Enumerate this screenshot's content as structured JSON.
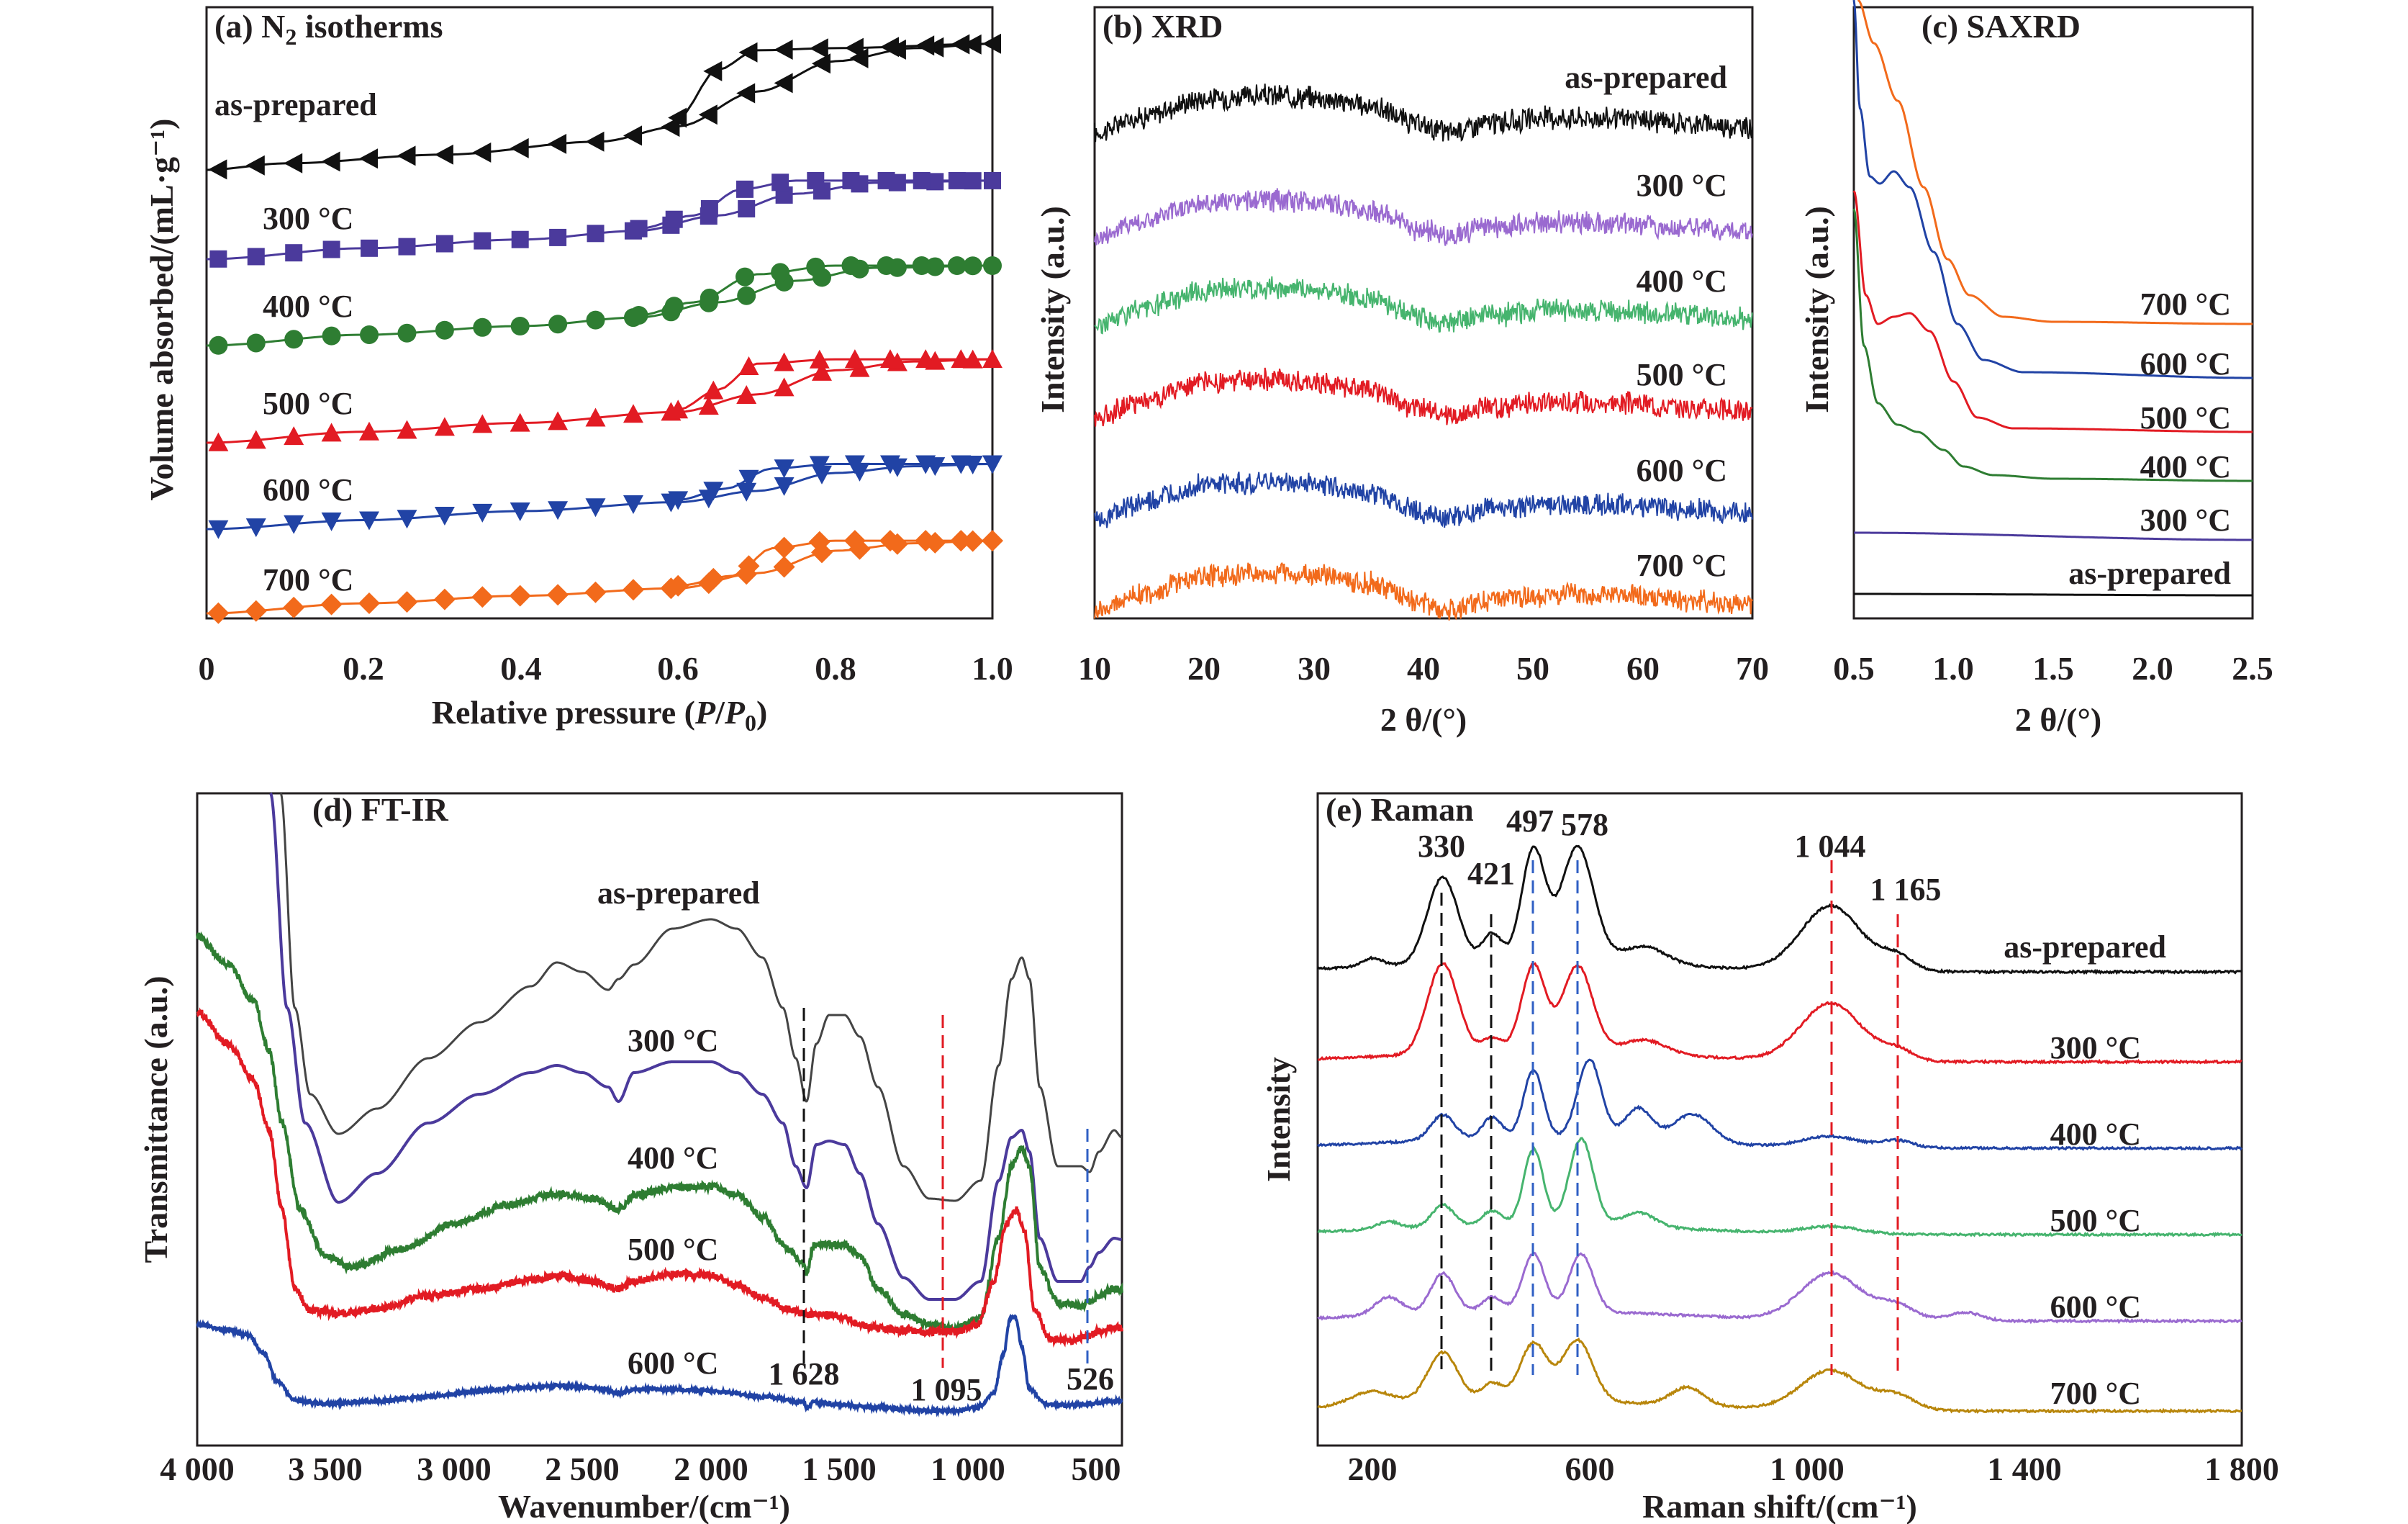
{
  "colors": {
    "black": "#111111",
    "purple": "#4b3a9c",
    "violet": "#9a6ad0",
    "green": "#2e7d32",
    "lgreen": "#46b46e",
    "red": "#e21b23",
    "blue": "#2143a5",
    "orange": "#f26a1b",
    "gold": "#b8860b",
    "gray": "#444444",
    "dashBlack": "#111111",
    "dashRed": "#e21b23",
    "dashBlue": "#2f5fc4"
  },
  "panels": {
    "a": {
      "title_prefix": "(a) N",
      "title_sub": "2",
      "title_suffix": " isotherms",
      "ylabel": "Volume absorbed/(mL·g⁻¹)",
      "xlabel_prefix": "Relative pressure (",
      "xlabel_p": "P",
      "xlabel_slash": "/",
      "xlabel_p0": "P",
      "xlabel_p0sub": "0",
      "xlabel_suffix": ")",
      "xticks": [
        "0",
        "0.2",
        "0.4",
        "0.6",
        "0.8",
        "1.0"
      ]
    },
    "b": {
      "title": "(b) XRD",
      "ylabel": "Intensity (a.u.)",
      "xlabel": "2 θ/(°)",
      "xticks": [
        "10",
        "20",
        "30",
        "40",
        "50",
        "60",
        "70"
      ]
    },
    "c": {
      "title": "(c) SAXRD",
      "ylabel": "Intensity (a.u.)",
      "xlabel": "2 θ/(°)",
      "xticks": [
        "0.5",
        "1.0",
        "1.5",
        "2.0",
        "2.5"
      ]
    },
    "d": {
      "title": "(d) FT-IR",
      "ylabel": "Transmittance (a.u.)",
      "xlabel": "Wavenumber/(cm⁻¹)",
      "xticks": [
        "4 000",
        "3 500",
        "3 000",
        "2 500",
        "2 000",
        "1 500",
        "1 000",
        "500"
      ],
      "annotations": [
        "1 628",
        "1 095",
        "526"
      ]
    },
    "e": {
      "title": "(e) Raman",
      "ylabel": "Intensity",
      "xlabel": "Raman shift/(cm⁻¹)",
      "xticks": [
        "200",
        "600",
        "1 000",
        "1 400",
        "1 800"
      ],
      "annotations": [
        "330",
        "421",
        "497",
        "578",
        "1 044",
        "1 165"
      ]
    }
  },
  "chart_data": [
    {
      "panel": "a",
      "type": "line",
      "title": "(a) N2 isotherms",
      "xlabel": "Relative pressure (P/P0)",
      "ylabel": "Volume absorbed/(mL·g⁻¹)",
      "xlim": [
        0,
        1.0
      ],
      "series": [
        {
          "name": "as-prepared",
          "marker": "triangle-left",
          "adsorption": [
            [
              0.0,
              0.0
            ],
            [
              0.1,
              0.03
            ],
            [
              0.3,
              0.07
            ],
            [
              0.5,
              0.13
            ],
            [
              0.6,
              0.2
            ],
            [
              0.7,
              0.36
            ],
            [
              0.8,
              0.5
            ],
            [
              0.9,
              0.56
            ],
            [
              1.0,
              0.58
            ]
          ],
          "desorption": [
            [
              1.0,
              0.58
            ],
            [
              0.8,
              0.56
            ],
            [
              0.7,
              0.55
            ],
            [
              0.65,
              0.46
            ],
            [
              0.6,
              0.24
            ]
          ]
        },
        {
          "name": "300 °C",
          "marker": "square",
          "adsorption": [
            [
              0.0,
              0.0
            ],
            [
              0.2,
              0.05
            ],
            [
              0.4,
              0.09
            ],
            [
              0.55,
              0.13
            ],
            [
              0.65,
              0.2
            ],
            [
              0.75,
              0.3
            ],
            [
              0.85,
              0.35
            ],
            [
              1.0,
              0.36
            ]
          ],
          "desorption": [
            [
              1.0,
              0.36
            ],
            [
              0.75,
              0.36
            ],
            [
              0.68,
              0.32
            ],
            [
              0.62,
              0.2
            ],
            [
              0.55,
              0.14
            ]
          ]
        },
        {
          "name": "400 °C",
          "marker": "circle",
          "adsorption": [
            [
              0.0,
              0.0
            ],
            [
              0.2,
              0.05
            ],
            [
              0.4,
              0.09
            ],
            [
              0.55,
              0.13
            ],
            [
              0.65,
              0.2
            ],
            [
              0.75,
              0.3
            ],
            [
              0.85,
              0.36
            ],
            [
              1.0,
              0.37
            ]
          ],
          "desorption": [
            [
              1.0,
              0.37
            ],
            [
              0.8,
              0.37
            ],
            [
              0.7,
              0.33
            ],
            [
              0.62,
              0.2
            ],
            [
              0.55,
              0.14
            ]
          ]
        },
        {
          "name": "500 °C",
          "marker": "triangle-up",
          "adsorption": [
            [
              0.0,
              0.0
            ],
            [
              0.2,
              0.05
            ],
            [
              0.4,
              0.09
            ],
            [
              0.6,
              0.14
            ],
            [
              0.7,
              0.22
            ],
            [
              0.8,
              0.33
            ],
            [
              0.9,
              0.37
            ],
            [
              1.0,
              0.38
            ]
          ],
          "desorption": [
            [
              1.0,
              0.38
            ],
            [
              0.8,
              0.38
            ],
            [
              0.7,
              0.36
            ],
            [
              0.65,
              0.24
            ],
            [
              0.6,
              0.15
            ]
          ]
        },
        {
          "name": "600 °C",
          "marker": "triangle-down",
          "adsorption": [
            [
              0.0,
              0.0
            ],
            [
              0.2,
              0.04
            ],
            [
              0.4,
              0.08
            ],
            [
              0.6,
              0.12
            ],
            [
              0.7,
              0.17
            ],
            [
              0.8,
              0.25
            ],
            [
              0.9,
              0.28
            ],
            [
              1.0,
              0.29
            ]
          ],
          "desorption": [
            [
              1.0,
              0.29
            ],
            [
              0.8,
              0.29
            ],
            [
              0.72,
              0.27
            ],
            [
              0.66,
              0.18
            ],
            [
              0.6,
              0.13
            ]
          ]
        },
        {
          "name": "700 °C",
          "marker": "diamond",
          "adsorption": [
            [
              0.0,
              0.0
            ],
            [
              0.2,
              0.04
            ],
            [
              0.4,
              0.07
            ],
            [
              0.6,
              0.1
            ],
            [
              0.7,
              0.16
            ],
            [
              0.8,
              0.25
            ],
            [
              0.9,
              0.28
            ],
            [
              1.0,
              0.29
            ]
          ],
          "desorption": [
            [
              1.0,
              0.29
            ],
            [
              0.8,
              0.29
            ],
            [
              0.72,
              0.26
            ],
            [
              0.67,
              0.15
            ],
            [
              0.6,
              0.11
            ]
          ]
        }
      ]
    },
    {
      "panel": "b",
      "type": "line",
      "title": "(b) XRD",
      "xlabel": "2 θ/(°)",
      "ylabel": "Intensity (a.u.)",
      "xlim": [
        10,
        70
      ],
      "series_names": [
        "as-prepared",
        "300 °C",
        "400 °C",
        "500 °C",
        "600 °C",
        "700 °C"
      ],
      "features": {
        "broad_maximum_2theta": [
          20,
          30
        ],
        "minimum_2theta": 42,
        "second_hump_2theta": [
          45,
          60
        ]
      }
    },
    {
      "panel": "c",
      "type": "line",
      "title": "(c) SAXRD",
      "xlabel": "2 θ/(°)",
      "ylabel": "Intensity (a.u.)",
      "xlim": [
        0.5,
        2.5
      ],
      "series_names": [
        "as-prepared",
        "300 °C",
        "400 °C",
        "500 °C",
        "600 °C",
        "700 °C"
      ],
      "peak_positions_2theta": {
        "400 °C": 0.85,
        "500 °C": 0.78,
        "600 °C": 0.7
      }
    },
    {
      "panel": "d",
      "type": "line",
      "title": "(d) FT-IR",
      "xlabel": "Wavenumber/(cm⁻¹)",
      "ylabel": "Transmittance (a.u.)",
      "xlim": [
        4000,
        400
      ],
      "series_names": [
        "as-prepared",
        "300 °C",
        "400 °C",
        "500 °C",
        "600 °C"
      ],
      "marked_bands_cm-1": [
        1628,
        1095,
        526
      ]
    },
    {
      "panel": "e",
      "type": "line",
      "title": "(e) Raman",
      "xlabel": "Raman shift/(cm⁻¹)",
      "ylabel": "Intensity",
      "xlim": [
        100,
        1800
      ],
      "series_names": [
        "as-prepared",
        "300 °C",
        "400 °C",
        "500 °C",
        "600 °C",
        "700 °C"
      ],
      "marked_peaks_cm-1": [
        330,
        421,
        497,
        578,
        1044,
        1165
      ]
    }
  ]
}
